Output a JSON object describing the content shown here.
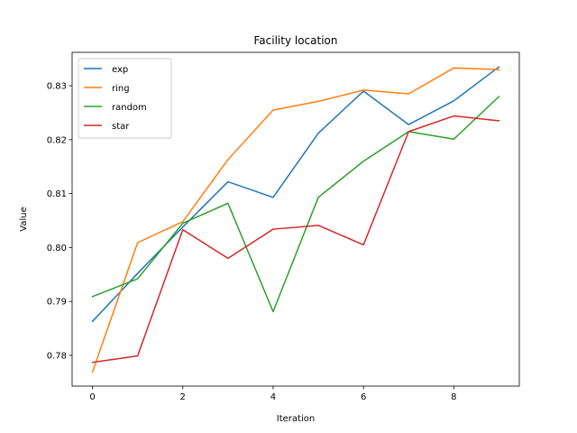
{
  "chart_data": {
    "type": "line",
    "title": "Facility location",
    "xlabel": "Iteration",
    "ylabel": "Value",
    "x": [
      0,
      1,
      2,
      3,
      4,
      5,
      6,
      7,
      8,
      9
    ],
    "xlim": [
      -0.45,
      9.45
    ],
    "ylim": [
      0.7743,
      0.8362
    ],
    "xticks": [
      0,
      2,
      4,
      6,
      8
    ],
    "yticks": [
      0.78,
      0.79,
      0.8,
      0.81,
      0.82,
      0.83
    ],
    "ytick_labels": [
      "0.78",
      "0.79",
      "0.80",
      "0.81",
      "0.82",
      "0.83"
    ],
    "xtick_labels": [
      "0",
      "2",
      "4",
      "6",
      "8"
    ],
    "grid": false,
    "legend_position": "top-left",
    "series": [
      {
        "name": "exp",
        "color": "#1f77b4",
        "values": [
          0.7863,
          0.7952,
          0.8038,
          0.8122,
          0.8093,
          0.8212,
          0.829,
          0.8228,
          0.8272,
          0.8335
        ]
      },
      {
        "name": "ring",
        "color": "#ff7f0e",
        "values": [
          0.7769,
          0.8009,
          0.8048,
          0.8163,
          0.8255,
          0.8271,
          0.8292,
          0.8285,
          0.8333,
          0.833
        ]
      },
      {
        "name": "random",
        "color": "#2ca02c",
        "values": [
          0.7909,
          0.7942,
          0.8045,
          0.8082,
          0.7881,
          0.8093,
          0.816,
          0.8215,
          0.8201,
          0.828
        ]
      },
      {
        "name": "star",
        "color": "#d62728",
        "values": [
          0.7787,
          0.7799,
          0.8033,
          0.798,
          0.8034,
          0.8041,
          0.8005,
          0.8215,
          0.8244,
          0.8235
        ]
      }
    ]
  }
}
